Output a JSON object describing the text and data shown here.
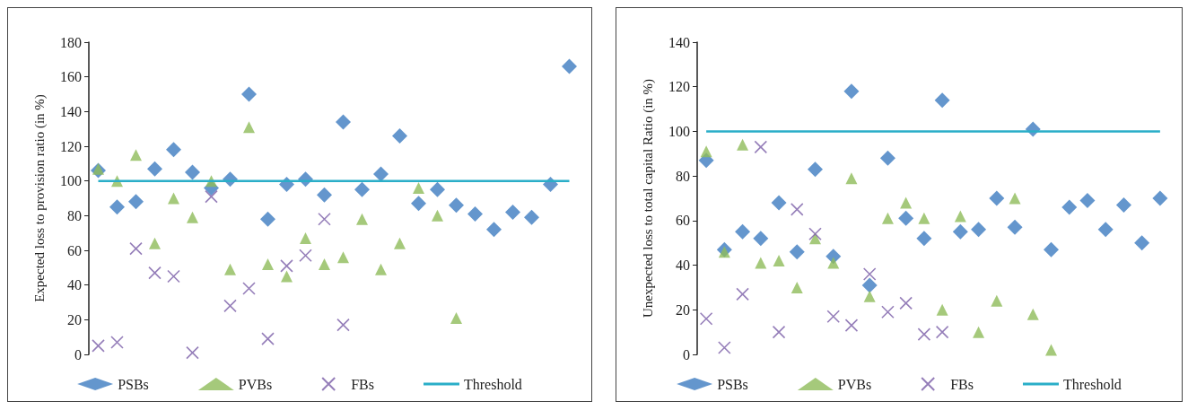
{
  "chart_data": [
    {
      "type": "scatter",
      "ylabel": "Expected loss to provision ratio (in %)",
      "categories": [
        null,
        null,
        null,
        null,
        null,
        null,
        null,
        null,
        null,
        null,
        null,
        null,
        null,
        null,
        null,
        null,
        null,
        null,
        null,
        null,
        null,
        null,
        null,
        null,
        null,
        null
      ],
      "ylim": [
        0,
        180
      ],
      "yticks": [
        0,
        20,
        40,
        60,
        80,
        100,
        120,
        140,
        160,
        180
      ],
      "grid": false,
      "legend": "bottom",
      "tick_labels": "y",
      "series": [
        {
          "name": "PSBs",
          "color": "#3d7cc0",
          "marker": "diamond",
          "values": [
            106,
            85,
            88,
            107,
            118,
            105,
            96,
            101,
            150,
            78,
            98,
            101,
            92,
            134,
            95,
            104,
            126,
            87,
            95,
            86,
            81,
            72,
            82,
            79,
            98,
            166
          ]
        },
        {
          "name": "PVBs",
          "color": "#8fbb5a",
          "marker": "triangle",
          "values": [
            107,
            100,
            115,
            64,
            90,
            79,
            100,
            49,
            131,
            52,
            45,
            67,
            52,
            56,
            78,
            49,
            64,
            96,
            80,
            21,
            null,
            null,
            null,
            null,
            null,
            null
          ]
        },
        {
          "name": "FBs",
          "color": "#7a5ea8",
          "marker": "cross",
          "values": [
            5,
            7,
            61,
            47,
            45,
            1,
            91,
            28,
            38,
            9,
            51,
            57,
            78,
            17,
            null,
            null,
            null,
            null,
            null,
            null,
            null,
            null,
            null,
            null,
            null,
            null
          ]
        },
        {
          "name": "Threshold",
          "type": "line",
          "color": "#2aaec8",
          "marker": "none",
          "values": [
            100,
            100,
            100,
            100,
            100,
            100,
            100,
            100,
            100,
            100,
            100,
            100,
            100,
            100,
            100,
            100,
            100,
            100,
            100,
            100,
            100,
            100,
            100,
            100,
            100,
            100
          ]
        }
      ]
    },
    {
      "type": "scatter",
      "ylabel": "Unexpected loss to total capital Ratio (in %)",
      "categories": [
        null,
        null,
        null,
        null,
        null,
        null,
        null,
        null,
        null,
        null,
        null,
        null,
        null,
        null,
        null,
        null,
        null,
        null,
        null,
        null,
        null,
        null,
        null,
        null,
        null,
        null
      ],
      "ylim": [
        0,
        140
      ],
      "yticks": [
        0,
        20,
        40,
        60,
        80,
        100,
        120,
        140
      ],
      "grid": false,
      "legend": "bottom",
      "tick_labels": "y",
      "series": [
        {
          "name": "PSBs",
          "color": "#3d7cc0",
          "marker": "diamond",
          "values": [
            87,
            47,
            55,
            52,
            68,
            46,
            83,
            44,
            118,
            31,
            88,
            61,
            52,
            114,
            55,
            56,
            70,
            57,
            101,
            47,
            66,
            69,
            56,
            67,
            50,
            70
          ]
        },
        {
          "name": "PVBs",
          "color": "#8fbb5a",
          "marker": "triangle",
          "values": [
            91,
            46,
            94,
            41,
            42,
            30,
            52,
            41,
            79,
            26,
            61,
            68,
            61,
            20,
            62,
            10,
            24,
            70,
            18,
            2,
            null,
            null,
            null,
            null,
            null,
            null
          ]
        },
        {
          "name": "FBs",
          "color": "#7a5ea8",
          "marker": "cross",
          "values": [
            16,
            3,
            27,
            93,
            10,
            65,
            54,
            17,
            13,
            36,
            19,
            23,
            9,
            10,
            null,
            null,
            null,
            null,
            null,
            null,
            null,
            null,
            null,
            null,
            null,
            null
          ]
        },
        {
          "name": "Threshold",
          "type": "line",
          "color": "#2aaec8",
          "marker": "none",
          "values": [
            100,
            100,
            100,
            100,
            100,
            100,
            100,
            100,
            100,
            100,
            100,
            100,
            100,
            100,
            100,
            100,
            100,
            100,
            100,
            100,
            100,
            100,
            100,
            100,
            100,
            100
          ]
        }
      ]
    }
  ]
}
